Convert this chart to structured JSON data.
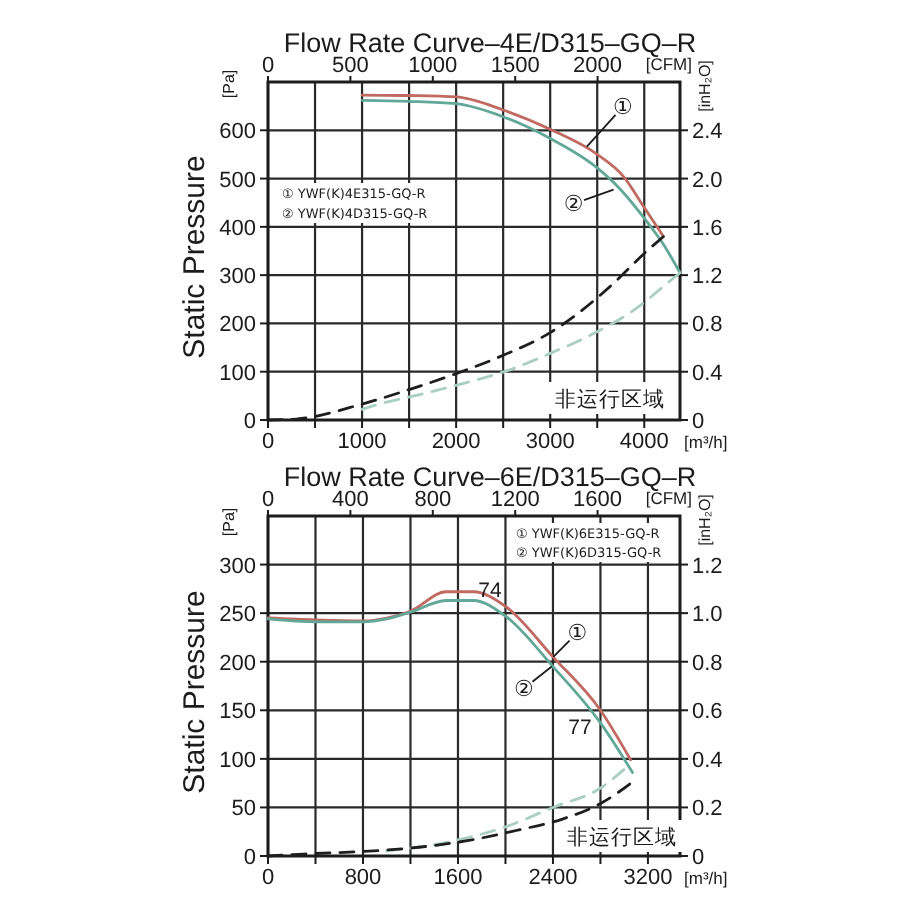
{
  "chart_data": [
    {
      "type": "line",
      "title": "Flow Rate Curve–4E/D315–GQ–R",
      "xlabel": "[m³/h]",
      "x2label": "[CFM]",
      "ylabel": "Static Pressure",
      "y2label": "[inH₂O]",
      "xlim": [
        0,
        4380
      ],
      "xticks": [
        0,
        {
          "value": 500,
          "label": null
        },
        1000,
        {
          "value": 1500,
          "label": null
        },
        2000,
        {
          "value": 2500,
          "label": null
        },
        3000,
        {
          "value": 3500,
          "label": null
        },
        4000
      ],
      "x2lim": [
        0,
        2500
      ],
      "x2ticks": [
        0,
        500,
        1000,
        1500,
        2000
      ],
      "ylim": [
        0,
        700
      ],
      "yticks": [
        0,
        100,
        200,
        300,
        400,
        500,
        600
      ],
      "y2lim": [
        0,
        2.8
      ],
      "y2ticks": [
        0,
        0.4,
        0.8,
        1.2,
        1.6,
        {
          "value": 2,
          "label": "2.0"
        },
        2.4
      ],
      "grid": true,
      "series": [
        {
          "color": "#c06a62",
          "line_style": "solid",
          "x": [
            1000,
            1500,
            2000,
            2500,
            3000,
            3500,
            3780,
            4000,
            4205
          ],
          "values": [
            673,
            672,
            669,
            642,
            602,
            550,
            504,
            440,
            380
          ]
        },
        {
          "color": "#62a898",
          "line_style": "solid",
          "x": [
            1000,
            1500,
            2000,
            2500,
            3000,
            3500,
            3750,
            4000,
            4200,
            4380
          ],
          "values": [
            662,
            660,
            655,
            628,
            583,
            522,
            477,
            418,
            365,
            305
          ]
        },
        {
          "color": "#1e1e1e",
          "line_style": "dashed",
          "x": [
            0,
            300,
            1000,
            1500,
            2000,
            2500,
            3000,
            3350,
            3700,
            4000,
            4205
          ],
          "values": [
            0,
            2,
            33,
            63,
            96,
            134,
            181,
            229,
            288,
            345,
            380
          ]
        },
        {
          "color": "#a9cfc0",
          "line_style": "dashed",
          "x": [
            1000,
            1200,
            1600,
            2100,
            2600,
            3000,
            3450,
            3900,
            4250,
            4380
          ],
          "values": [
            22,
            34,
            52,
            77,
            106,
            138,
            178,
            229,
            284,
            305
          ]
        }
      ],
      "annotations": [
        "① YWF(K)4E315-GQ-R",
        "② YWF(K)4D315-GQ-R",
        {
          "text": "①",
          "x": 3390,
          "y": 566
        },
        {
          "text": "②",
          "x": 3674,
          "y": 477
        },
        "非运行区域",
        "[Pa]"
      ]
    },
    {
      "type": "line",
      "title": "Flow Rate Curve–6E/D315–GQ–R",
      "xlabel": "[m³/h]",
      "x2label": "[CFM]",
      "ylabel": "Static Pressure",
      "y2label": "[inH₂O]",
      "xlim": [
        0,
        3470
      ],
      "xticks": [
        0,
        {
          "value": 400,
          "label": null
        },
        800,
        {
          "value": 1200,
          "label": null
        },
        1600,
        {
          "value": 2000,
          "label": null
        },
        2400,
        {
          "value": 2800,
          "label": null
        },
        3200
      ],
      "x2lim": [
        0,
        2000
      ],
      "x2ticks": [
        0,
        400,
        800,
        1200,
        1600
      ],
      "ylim": [
        0,
        350
      ],
      "yticks": [
        0,
        50,
        100,
        150,
        200,
        250,
        300
      ],
      "y2lim": [
        0,
        1.4
      ],
      "y2ticks": [
        0,
        0.2,
        0.4,
        0.6,
        0.8,
        {
          "value": 1,
          "label": "1.0"
        },
        1.2
      ],
      "grid": true,
      "series": [
        {
          "color": "#c06a62",
          "line_style": "solid",
          "x": [
            0,
            400,
            800,
            1000,
            1200,
            1500,
            1730,
            2000,
            2400,
            2800,
            3054
          ],
          "values": [
            245,
            243,
            242,
            245,
            252,
            272,
            272,
            257,
            205,
            150,
            99
          ]
        },
        {
          "color": "#62a898",
          "line_style": "solid",
          "x": [
            0,
            400,
            800,
            1000,
            1200,
            1500,
            1730,
            2000,
            2400,
            2800,
            3070
          ],
          "values": [
            244,
            241,
            241,
            244,
            251,
            263,
            263,
            247,
            195,
            137,
            86
          ]
        },
        {
          "color": "#a9cfc0",
          "line_style": "dashed",
          "x": [
            1000,
            1500,
            2000,
            2400,
            2800,
            3054
          ],
          "values": [
            5,
            14,
            30,
            50,
            70,
            95
          ]
        },
        {
          "color": "#1e1e1e",
          "line_style": "dashed",
          "x": [
            0,
            300,
            850,
            1270,
            1690,
            2080,
            2480,
            2815,
            3100
          ],
          "values": [
            0,
            2,
            5,
            9,
            16,
            26,
            38,
            55,
            79
          ]
        }
      ],
      "annotations": [
        "① YWF(K)6E315-GQ-R",
        "② YWF(K)6D315-GQ-R",
        {
          "text": "①",
          "x": 2403,
          "y": 205
        },
        {
          "text": "②",
          "x": 2390,
          "y": 195
        },
        {
          "text": "74",
          "x": 1869,
          "y": 275
        },
        "77",
        "非运行区域",
        "[Pa]"
      ]
    }
  ]
}
